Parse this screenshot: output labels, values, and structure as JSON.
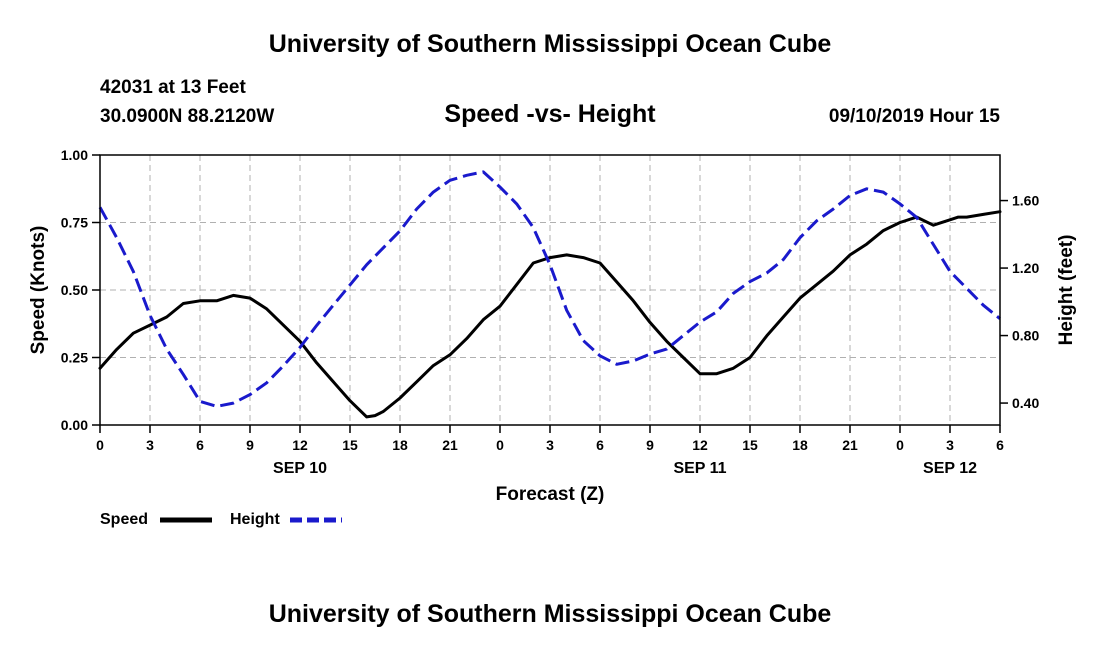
{
  "header": {
    "title": "University of Southern Mississippi Ocean Cube",
    "station": "42031 at 13 Feet",
    "coords": "30.0900N 88.2120W",
    "valid_time": "09/10/2019 Hour 15"
  },
  "footer": {
    "title": "University of Southern Mississippi Ocean Cube"
  },
  "chart_data": {
    "type": "line",
    "title": "Speed -vs- Height",
    "xlabel": "Forecast (Z)",
    "ylabel": "Speed (Knots)",
    "y2label": "Height (feet)",
    "grid": true,
    "legend_position": "bottom-left",
    "xlim": [
      0,
      54
    ],
    "ylim": [
      0,
      1.0
    ],
    "y2lim": [
      0.27,
      1.87
    ],
    "x_ticks": [
      0,
      3,
      6,
      9,
      12,
      15,
      18,
      21,
      24,
      27,
      30,
      33,
      36,
      39,
      42,
      45,
      48,
      51,
      54
    ],
    "x_tick_labels": [
      "0",
      "3",
      "6",
      "9",
      "12",
      "15",
      "18",
      "21",
      "0",
      "3",
      "6",
      "9",
      "12",
      "15",
      "18",
      "21",
      "0",
      "3",
      "6"
    ],
    "date_labels": [
      {
        "x": 12,
        "label": "SEP 10"
      },
      {
        "x": 36,
        "label": "SEP 11"
      },
      {
        "x": 51,
        "label": "SEP 12"
      }
    ],
    "y_ticks": [
      0,
      0.25,
      0.5,
      0.75,
      1.0
    ],
    "y_tick_labels": [
      "0.00",
      "0.25",
      "0.50",
      "0.75",
      "1.00"
    ],
    "y2_ticks": [
      0.4,
      0.8,
      1.2,
      1.6
    ],
    "y2_tick_labels": [
      "0.40",
      "0.80",
      "1.20",
      "1.60"
    ],
    "series": [
      {
        "name": "Speed",
        "axis": "left",
        "color": "#000000",
        "dash": "solid",
        "x": [
          0,
          1,
          2,
          3,
          4,
          5,
          6,
          7,
          8,
          9,
          10,
          11,
          12,
          13,
          14,
          15,
          16,
          16.5,
          17,
          18,
          19,
          20,
          21,
          22,
          23,
          24,
          25,
          26,
          27,
          28,
          29,
          30,
          31,
          32,
          33,
          34,
          35,
          36,
          37,
          38,
          39,
          40,
          41,
          42,
          43,
          44,
          45,
          46,
          47,
          48,
          49,
          50,
          51,
          51.5,
          52,
          53,
          54
        ],
        "values": [
          0.21,
          0.28,
          0.34,
          0.37,
          0.4,
          0.45,
          0.46,
          0.46,
          0.48,
          0.47,
          0.43,
          0.37,
          0.31,
          0.23,
          0.16,
          0.09,
          0.03,
          0.035,
          0.05,
          0.1,
          0.16,
          0.22,
          0.26,
          0.32,
          0.39,
          0.44,
          0.52,
          0.6,
          0.62,
          0.63,
          0.62,
          0.6,
          0.53,
          0.46,
          0.38,
          0.31,
          0.25,
          0.19,
          0.19,
          0.21,
          0.25,
          0.33,
          0.4,
          0.47,
          0.52,
          0.57,
          0.63,
          0.67,
          0.72,
          0.75,
          0.77,
          0.74,
          0.76,
          0.77,
          0.77,
          0.78,
          0.79
        ]
      },
      {
        "name": "Height",
        "axis": "right",
        "color": "#1a1acc",
        "dash": "dashed",
        "x": [
          0,
          1,
          2,
          3,
          4,
          5,
          6,
          7,
          8,
          9,
          10,
          11,
          12,
          13,
          14,
          15,
          16,
          17,
          18,
          19,
          20,
          21,
          22,
          23,
          24,
          25,
          26,
          27,
          28,
          29,
          30,
          31,
          32,
          33,
          34,
          35,
          36,
          37,
          38,
          39,
          40,
          41,
          42,
          43,
          44,
          45,
          46,
          47,
          48,
          49,
          50,
          51,
          52,
          53,
          54
        ],
        "values": [
          1.56,
          1.38,
          1.18,
          0.92,
          0.72,
          0.57,
          0.41,
          0.38,
          0.4,
          0.45,
          0.52,
          0.62,
          0.73,
          0.86,
          0.98,
          1.1,
          1.22,
          1.32,
          1.42,
          1.55,
          1.65,
          1.72,
          1.75,
          1.77,
          1.68,
          1.58,
          1.44,
          1.22,
          0.95,
          0.77,
          0.68,
          0.63,
          0.65,
          0.69,
          0.72,
          0.8,
          0.88,
          0.94,
          1.05,
          1.12,
          1.17,
          1.25,
          1.38,
          1.48,
          1.55,
          1.63,
          1.67,
          1.65,
          1.58,
          1.5,
          1.34,
          1.18,
          1.08,
          0.98,
          0.9
        ]
      }
    ]
  }
}
